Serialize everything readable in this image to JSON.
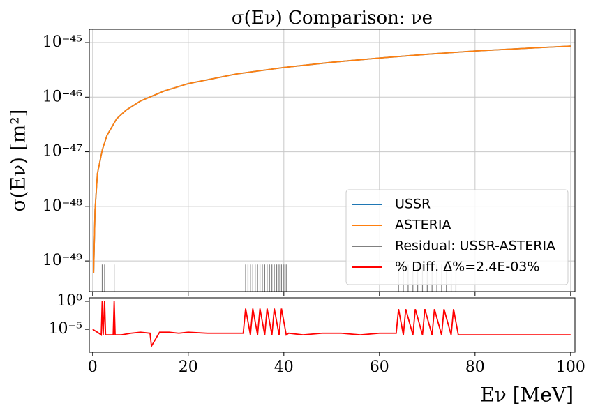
{
  "chart_data": [
    {
      "type": "line",
      "title": "σ(Eν) Comparison: νe",
      "ylabel": "σ(Eν) [m²]",
      "log_y": true,
      "grid": true,
      "legend": "lower right",
      "xlim": [
        -0.7,
        100.9
      ],
      "ylim": [
        2.75e-50,
        1.75e-45
      ],
      "xticks": [
        0,
        20,
        40,
        60,
        80,
        100
      ],
      "yticks": [
        {
          "value": 1e-49,
          "label": "10⁻⁴⁹"
        },
        {
          "value": 1e-48,
          "label": "10⁻⁴⁸"
        },
        {
          "value": 1e-47,
          "label": "10⁻⁴⁷"
        },
        {
          "value": 1e-46,
          "label": "10⁻⁴⁶"
        },
        {
          "value": 1e-45,
          "label": "10⁻⁴⁵"
        }
      ],
      "x": [
        0.2,
        0.5,
        1,
        2,
        3,
        5,
        7,
        10,
        15,
        20,
        30,
        40,
        50,
        60,
        70,
        80,
        90,
        100
      ],
      "series": [
        {
          "name": "USSR",
          "color": "#1f77b4",
          "values": [
            6e-50,
            8.7e-49,
            4e-48,
            1.07e-47,
            2e-47,
            4e-47,
            5.8e-47,
            8.5e-47,
            1.3e-46,
            1.77e-46,
            2.65e-46,
            3.5e-46,
            4.35e-46,
            5.2e-46,
            6.1e-46,
            7e-46,
            7.8e-46,
            8.6e-46
          ]
        },
        {
          "name": "ASTERIA",
          "color": "#ff7f0e",
          "values": [
            6e-50,
            8.7e-49,
            4e-48,
            1.07e-47,
            2e-47,
            4e-47,
            5.8e-47,
            8.5e-47,
            1.3e-46,
            1.77e-46,
            2.65e-46,
            3.5e-46,
            4.35e-46,
            5.2e-46,
            6.1e-46,
            7e-46,
            7.8e-46,
            8.6e-46
          ]
        },
        {
          "name": "Residual: USSR-ASTERIA",
          "color": "#808080",
          "style": "vlines",
          "x": [
            2,
            2.5,
            4.5,
            32,
            32.5,
            33,
            33.5,
            34,
            34.5,
            35,
            35.5,
            36,
            36.5,
            37,
            37.5,
            38,
            38.5,
            39,
            39.5,
            40,
            40.5,
            64,
            65,
            66,
            67,
            68,
            69,
            70,
            71,
            72,
            73,
            74,
            75,
            76
          ],
          "values": [
            8.6e-50,
            8.6e-50,
            8.6e-50,
            8.6e-50,
            8.6e-50,
            8.6e-50,
            8.6e-50,
            8.6e-50,
            8.6e-50,
            8.6e-50,
            8.6e-50,
            8.6e-50,
            8.6e-50,
            8.6e-50,
            8.6e-50,
            8.6e-50,
            8.6e-50,
            8.6e-50,
            8.6e-50,
            8.6e-50,
            8.6e-50,
            8.6e-50,
            8.6e-50,
            8.6e-50,
            8.6e-50,
            8.6e-50,
            8.6e-50,
            8.6e-50,
            8.6e-50,
            8.6e-50,
            8.6e-50,
            8.6e-50,
            8.6e-50,
            8.6e-50
          ]
        }
      ]
    },
    {
      "type": "line",
      "xlabel": "Eν [MeV]",
      "log_y": true,
      "grid": false,
      "xlim": [
        -0.7,
        100.9
      ],
      "ylim": [
        8e-10,
        4.2
      ],
      "xticks": [
        0,
        20,
        40,
        60,
        80,
        100
      ],
      "yticks": [
        {
          "value": 1e-05,
          "label": "10⁻⁵"
        },
        {
          "value": 1,
          "label": "10⁰"
        }
      ],
      "x": [
        0,
        1,
        1.8,
        2,
        2.2,
        2.5,
        2.7,
        3.5,
        4.3,
        4.5,
        4.7,
        6,
        8,
        10,
        12,
        12.3,
        14,
        16,
        18,
        20,
        24,
        28,
        31.5,
        32,
        33,
        33.5,
        34.5,
        35,
        36,
        36.5,
        37.5,
        38,
        39,
        39.5,
        40.5,
        41,
        44,
        48,
        52,
        56,
        60,
        63.5,
        64,
        65,
        65.5,
        67,
        67.5,
        69,
        69.5,
        71,
        71.5,
        73,
        73.5,
        75,
        75.5,
        76.5,
        77,
        80,
        84,
        88,
        92,
        96,
        100
      ],
      "series": [
        {
          "name": "% Diff. Δ̄%=2.4E-03%",
          "color": "#ff0000",
          "values": [
            1e-05,
            3e-06,
            1e-06,
            1,
            1e-06,
            1,
            1e-06,
            1e-06,
            1e-06,
            1,
            1e-06,
            1e-06,
            2e-06,
            3e-06,
            2e-06,
            1e-08,
            3e-06,
            3e-06,
            2e-06,
            3e-06,
            2e-06,
            2e-06,
            2e-06,
            0.05,
            1e-06,
            0.05,
            1e-06,
            0.05,
            1e-06,
            0.05,
            1e-06,
            0.05,
            1e-06,
            0.05,
            1e-06,
            2e-06,
            1e-06,
            2e-06,
            2e-06,
            1e-06,
            2e-06,
            2e-06,
            0.04,
            1e-06,
            0.04,
            1e-06,
            0.04,
            1e-06,
            0.04,
            1e-06,
            0.04,
            1e-06,
            0.04,
            1e-06,
            0.04,
            1e-06,
            1e-06,
            1e-06,
            1e-06,
            1e-06,
            1e-06,
            1e-06,
            1e-06
          ]
        }
      ]
    }
  ]
}
